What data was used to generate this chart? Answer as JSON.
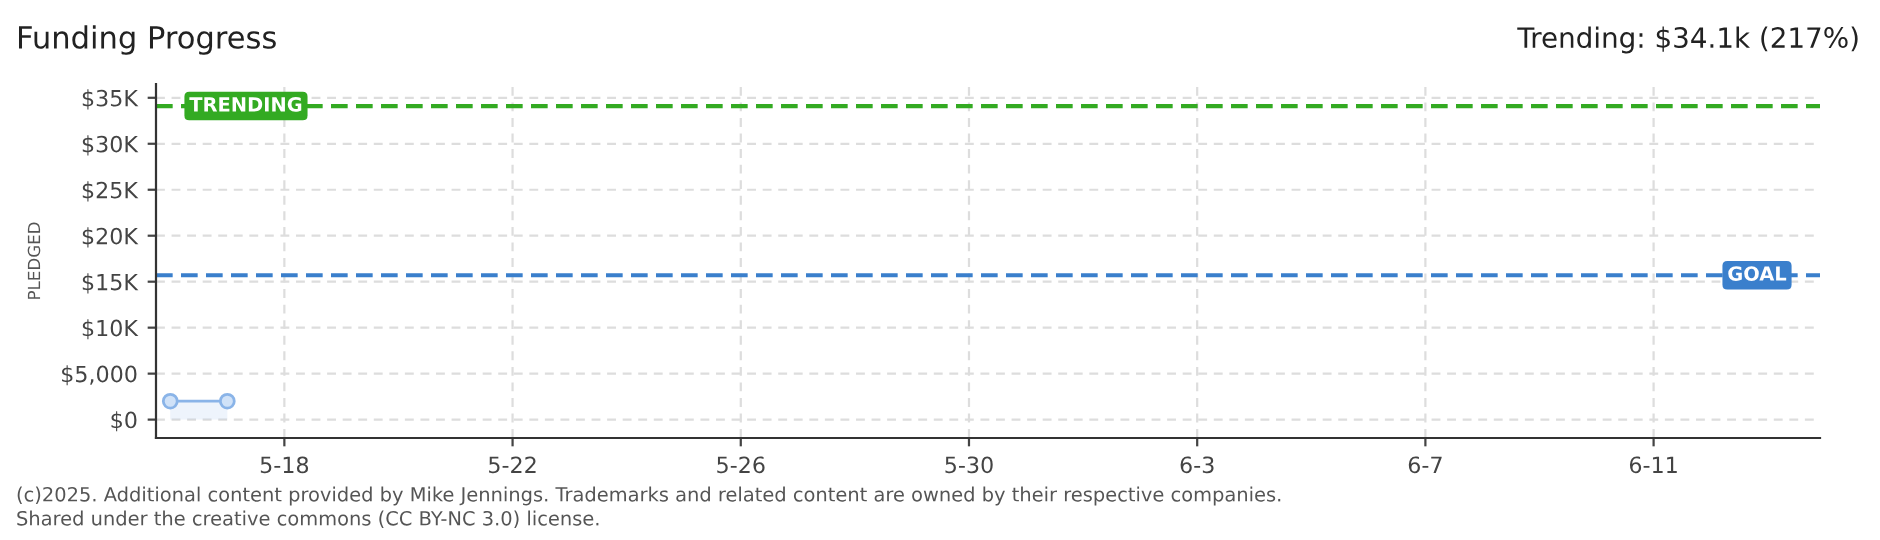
{
  "chart_data": {
    "type": "area",
    "title": "Funding Progress",
    "ylabel": "PLEDGED",
    "annotations": [
      "Trending: $34.1k (217%)",
      "(c)2025. Additional content provided by Mike Jennings. Trademarks and related content are owned by their respective companies.",
      "Shared under the creative commons (CC BY-NC 3.0) license."
    ],
    "series": [
      {
        "color": "#8ab4e8",
        "x": [
          "2025-05-16",
          "2025-05-17"
        ],
        "values": [
          2000,
          2000
        ]
      }
    ],
    "marker": "circle",
    "xlim": [
      "2025-05-15T18:00",
      "2025-06-13T22:00"
    ],
    "xticks": [
      {
        "value": "2025-05-18",
        "label": "5-18"
      },
      {
        "value": "2025-05-22",
        "label": "5-22"
      },
      {
        "value": "2025-05-26",
        "label": "5-26"
      },
      {
        "value": "2025-05-30",
        "label": "5-30"
      },
      {
        "value": "2025-06-03",
        "label": "6-3"
      },
      {
        "value": "2025-06-07",
        "label": "6-7"
      },
      {
        "value": "2025-06-11",
        "label": "6-11"
      }
    ],
    "ylim": [
      -2000,
      36500
    ],
    "yticks": [
      {
        "value": 0,
        "label": "$0"
      },
      {
        "value": 5000,
        "label": "$5,000"
      },
      {
        "value": 10000,
        "label": "$10K"
      },
      {
        "value": 15000,
        "label": "$15K"
      },
      {
        "value": 20000,
        "label": "$20K"
      },
      {
        "value": 25000,
        "label": "$25K"
      },
      {
        "value": 30000,
        "label": "$30K"
      },
      {
        "value": 35000,
        "label": "$35K"
      }
    ],
    "ref_lines": [
      {
        "axis": "y",
        "value": 34100,
        "label": "TRENDING",
        "color": "#33aa22",
        "line_style": "dashed"
      },
      {
        "axis": "y",
        "value": 15700,
        "label": "GOAL",
        "color": "#3a7fcc",
        "line_style": "dashed"
      }
    ],
    "grid": true
  }
}
